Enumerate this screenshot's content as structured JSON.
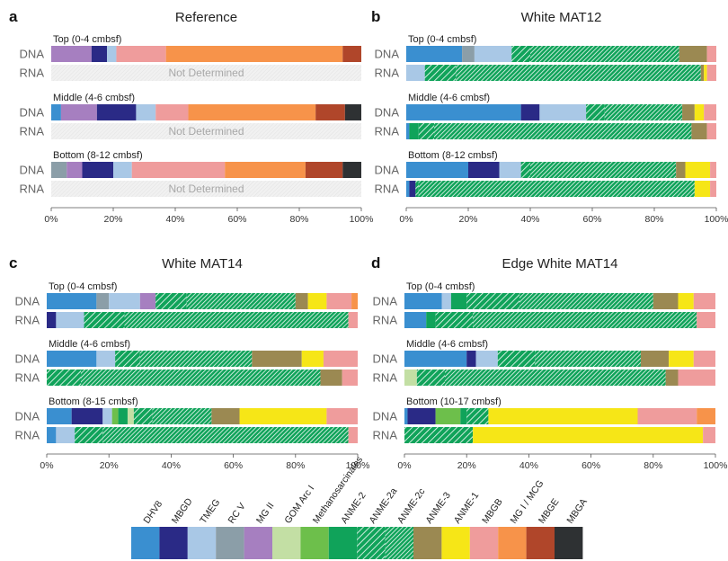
{
  "colors": {
    "DHV8": "#3a8fd0",
    "MBGD": "#2a2a86",
    "TMEG": "#a9c8e6",
    "RC V": "#8b9ea8",
    "MG II": "#a67fc0",
    "GOM Arc I": "#c3dfa4",
    "Methanosarcinales": "#6dbf4b",
    "ANME-2": "#10a35a",
    "ANME-2a": "#10a35a",
    "ANME-2c": "#10a35a",
    "ANME-3": "#9b8952",
    "ANME-1": "#f6e617",
    "MBGB": "#ef9c9c",
    "MG I / MCG": "#f7934a",
    "MBGE": "#b0462a",
    "MBGA": "#2e3133"
  },
  "hatch": {
    "ANME-2a": "sparse",
    "ANME-2c": "dense"
  },
  "legend": {
    "items": [
      "DHV8",
      "MBGD",
      "TMEG",
      "RC V",
      "MG II",
      "GOM Arc I",
      "Methanosarcinales",
      "ANME-2",
      "ANME-2a",
      "ANME-2c",
      "ANME-3",
      "ANME-1",
      "MBGB",
      "MG I / MCG",
      "MBGE",
      "MBGA"
    ]
  },
  "chart_data": [
    {
      "type": "bar",
      "orientation": "horizontal-stacked-percent",
      "panel": "a",
      "title": "Reference",
      "xlim": [
        0,
        100
      ],
      "x_ticks": [
        "0%",
        "20%",
        "40%",
        "60%",
        "80%",
        "100%"
      ],
      "groups": [
        {
          "label": "Top (0-4 cmbsf)",
          "rows": [
            {
              "name": "DNA",
              "segments": [
                [
                  "MG II",
                  13
                ],
                [
                  "MBGD",
                  5
                ],
                [
                  "TMEG",
                  3
                ],
                [
                  "MBGB",
                  16
                ],
                [
                  "MG I / MCG",
                  57
                ],
                [
                  "MBGE",
                  6
                ]
              ]
            },
            {
              "name": "RNA",
              "segments": [],
              "note": "Not Determined"
            }
          ]
        },
        {
          "label": "Middle (4-6 cmbsf)",
          "rows": [
            {
              "name": "DNA",
              "segments": [
                [
                  "DHV8",
                  3
                ],
                [
                  "MG II",
                  11
                ],
                [
                  "MBGD",
                  12
                ],
                [
                  "TMEG",
                  6
                ],
                [
                  "MBGB",
                  10
                ],
                [
                  "MG I / MCG",
                  39
                ],
                [
                  "MBGE",
                  9
                ],
                [
                  "MBGA",
                  5
                ]
              ]
            },
            {
              "name": "RNA",
              "segments": [],
              "note": "Not Determined"
            }
          ]
        },
        {
          "label": "Bottom (8-12 cmbsf)",
          "rows": [
            {
              "name": "DNA",
              "segments": [
                [
                  "RC V",
                  5
                ],
                [
                  "MG II",
                  5
                ],
                [
                  "MBGD",
                  10
                ],
                [
                  "TMEG",
                  6
                ],
                [
                  "MBGB",
                  30
                ],
                [
                  "MG I / MCG",
                  26
                ],
                [
                  "MBGE",
                  12
                ],
                [
                  "MBGA",
                  6
                ]
              ]
            },
            {
              "name": "RNA",
              "segments": [],
              "note": "Not Determined"
            }
          ]
        }
      ]
    },
    {
      "type": "bar",
      "orientation": "horizontal-stacked-percent",
      "panel": "b",
      "title": "White MAT12",
      "xlim": [
        0,
        100
      ],
      "x_ticks": [
        "0%",
        "20%",
        "40%",
        "60%",
        "80%",
        "100%"
      ],
      "groups": [
        {
          "label": "Top (0-4 cmbsf)",
          "rows": [
            {
              "name": "DNA",
              "segments": [
                [
                  "DHV8",
                  18
                ],
                [
                  "RC V",
                  4
                ],
                [
                  "TMEG",
                  12
                ],
                [
                  "ANME-2a",
                  6
                ],
                [
                  "ANME-2c",
                  48
                ],
                [
                  "ANME-3",
                  9
                ],
                [
                  "MBGB",
                  3
                ]
              ]
            },
            {
              "name": "RNA",
              "segments": [
                [
                  "TMEG",
                  6
                ],
                [
                  "ANME-2a",
                  10
                ],
                [
                  "ANME-2c",
                  79
                ],
                [
                  "ANME-3",
                  1
                ],
                [
                  "ANME-1",
                  1
                ],
                [
                  "MBGB",
                  3
                ]
              ]
            }
          ]
        },
        {
          "label": "Middle (4-6 cmbsf)",
          "rows": [
            {
              "name": "DNA",
              "segments": [
                [
                  "DHV8",
                  37
                ],
                [
                  "MBGD",
                  6
                ],
                [
                  "TMEG",
                  15
                ],
                [
                  "ANME-2a",
                  6
                ],
                [
                  "ANME-2c",
                  25
                ],
                [
                  "ANME-3",
                  4
                ],
                [
                  "ANME-1",
                  3
                ],
                [
                  "MBGB",
                  4
                ]
              ]
            },
            {
              "name": "RNA",
              "segments": [
                [
                  "DHV8",
                  1
                ],
                [
                  "ANME-2",
                  3
                ],
                [
                  "ANME-2a",
                  5
                ],
                [
                  "ANME-2c",
                  83
                ],
                [
                  "ANME-3",
                  5
                ],
                [
                  "MBGB",
                  3
                ]
              ]
            }
          ]
        },
        {
          "label": "Bottom (8-12 cmbsf)",
          "rows": [
            {
              "name": "DNA",
              "segments": [
                [
                  "DHV8",
                  20
                ],
                [
                  "MBGD",
                  10
                ],
                [
                  "TMEG",
                  7
                ],
                [
                  "ANME-2a",
                  3
                ],
                [
                  "ANME-2c",
                  47
                ],
                [
                  "ANME-3",
                  3
                ],
                [
                  "ANME-1",
                  8
                ],
                [
                  "MBGB",
                  2
                ]
              ]
            },
            {
              "name": "RNA",
              "segments": [
                [
                  "DHV8",
                  1
                ],
                [
                  "MBGD",
                  2
                ],
                [
                  "ANME-2a",
                  1
                ],
                [
                  "ANME-2c",
                  89
                ],
                [
                  "ANME-1",
                  5
                ],
                [
                  "MBGB",
                  2
                ]
              ]
            }
          ]
        }
      ]
    },
    {
      "type": "bar",
      "orientation": "horizontal-stacked-percent",
      "panel": "c",
      "title": "White MAT14",
      "xlim": [
        0,
        100
      ],
      "x_ticks": [
        "0%",
        "20%",
        "40%",
        "60%",
        "80%",
        "100%"
      ],
      "groups": [
        {
          "label": "Top (0-4 cmbsf)",
          "rows": [
            {
              "name": "DNA",
              "segments": [
                [
                  "DHV8",
                  16
                ],
                [
                  "RC V",
                  4
                ],
                [
                  "TMEG",
                  10
                ],
                [
                  "MG II",
                  5
                ],
                [
                  "ANME-2a",
                  10
                ],
                [
                  "ANME-2c",
                  35
                ],
                [
                  "ANME-3",
                  4
                ],
                [
                  "ANME-1",
                  6
                ],
                [
                  "MBGB",
                  8
                ],
                [
                  "MG I / MCG",
                  2
                ]
              ]
            },
            {
              "name": "RNA",
              "segments": [
                [
                  "MBGD",
                  3
                ],
                [
                  "TMEG",
                  9
                ],
                [
                  "ANME-2a",
                  13
                ],
                [
                  "ANME-2c",
                  72
                ],
                [
                  "MBGB",
                  3
                ]
              ]
            }
          ]
        },
        {
          "label": "Middle (4-6 cmbsf)",
          "rows": [
            {
              "name": "DNA",
              "segments": [
                [
                  "DHV8",
                  16
                ],
                [
                  "TMEG",
                  6
                ],
                [
                  "ANME-2a",
                  8
                ],
                [
                  "ANME-2c",
                  36
                ],
                [
                  "ANME-3",
                  16
                ],
                [
                  "ANME-1",
                  7
                ],
                [
                  "MBGB",
                  11
                ]
              ]
            },
            {
              "name": "RNA",
              "segments": [
                [
                  "ANME-2a",
                  11
                ],
                [
                  "ANME-2c",
                  77
                ],
                [
                  "ANME-3",
                  7
                ],
                [
                  "MBGB",
                  5
                ]
              ]
            }
          ]
        },
        {
          "label": "Bottom (8-15 cmbsf)",
          "rows": [
            {
              "name": "DNA",
              "segments": [
                [
                  "DHV8",
                  8
                ],
                [
                  "MBGD",
                  10
                ],
                [
                  "TMEG",
                  3
                ],
                [
                  "Methanosarcinales",
                  2
                ],
                [
                  "ANME-2",
                  3
                ],
                [
                  "GOM Arc I",
                  2
                ],
                [
                  "ANME-2a",
                  6
                ],
                [
                  "ANME-2c",
                  19
                ],
                [
                  "ANME-3",
                  9
                ],
                [
                  "ANME-1",
                  28
                ],
                [
                  "MBGB",
                  10
                ]
              ]
            },
            {
              "name": "RNA",
              "segments": [
                [
                  "DHV8",
                  3
                ],
                [
                  "TMEG",
                  6
                ],
                [
                  "ANME-2a",
                  9
                ],
                [
                  "ANME-2c",
                  79
                ],
                [
                  "MBGB",
                  3
                ]
              ]
            }
          ]
        }
      ]
    },
    {
      "type": "bar",
      "orientation": "horizontal-stacked-percent",
      "panel": "d",
      "title": "Edge White MAT14",
      "xlim": [
        0,
        100
      ],
      "x_ticks": [
        "0%",
        "20%",
        "40%",
        "60%",
        "80%",
        "100%"
      ],
      "groups": [
        {
          "label": "Top (0-4 cmbsf)",
          "rows": [
            {
              "name": "DNA",
              "segments": [
                [
                  "DHV8",
                  12
                ],
                [
                  "TMEG",
                  3
                ],
                [
                  "ANME-2",
                  5
                ],
                [
                  "ANME-2a",
                  17
                ],
                [
                  "ANME-2c",
                  43
                ],
                [
                  "ANME-3",
                  8
                ],
                [
                  "ANME-1",
                  5
                ],
                [
                  "MBGB",
                  7
                ]
              ]
            },
            {
              "name": "RNA",
              "segments": [
                [
                  "DHV8",
                  7
                ],
                [
                  "ANME-2",
                  3
                ],
                [
                  "ANME-2a",
                  12
                ],
                [
                  "ANME-2c",
                  72
                ],
                [
                  "MBGB",
                  6
                ]
              ]
            }
          ]
        },
        {
          "label": "Middle (4-6 cmbsf)",
          "rows": [
            {
              "name": "DNA",
              "segments": [
                [
                  "DHV8",
                  20
                ],
                [
                  "MBGD",
                  3
                ],
                [
                  "TMEG",
                  7
                ],
                [
                  "ANME-2a",
                  12
                ],
                [
                  "ANME-2c",
                  34
                ],
                [
                  "ANME-3",
                  9
                ],
                [
                  "ANME-1",
                  8
                ],
                [
                  "MBGB",
                  7
                ]
              ]
            },
            {
              "name": "RNA",
              "segments": [
                [
                  "GOM Arc I",
                  4
                ],
                [
                  "ANME-2a",
                  9
                ],
                [
                  "ANME-2c",
                  71
                ],
                [
                  "ANME-3",
                  4
                ],
                [
                  "MBGB",
                  12
                ]
              ]
            }
          ]
        },
        {
          "label": "Bottom (10-17 cmbsf)",
          "rows": [
            {
              "name": "DNA",
              "segments": [
                [
                  "DHV8",
                  1
                ],
                [
                  "MBGD",
                  9
                ],
                [
                  "Methanosarcinales",
                  8
                ],
                [
                  "ANME-2",
                  2
                ],
                [
                  "ANME-2a",
                  7
                ],
                [
                  "ANME-1",
                  48
                ],
                [
                  "MBGB",
                  19
                ],
                [
                  "MG I / MCG",
                  6
                ]
              ]
            },
            {
              "name": "RNA",
              "segments": [
                [
                  "ANME-2a",
                  22
                ],
                [
                  "ANME-1",
                  74
                ],
                [
                  "MBGB",
                  4
                ]
              ]
            }
          ]
        }
      ]
    }
  ]
}
